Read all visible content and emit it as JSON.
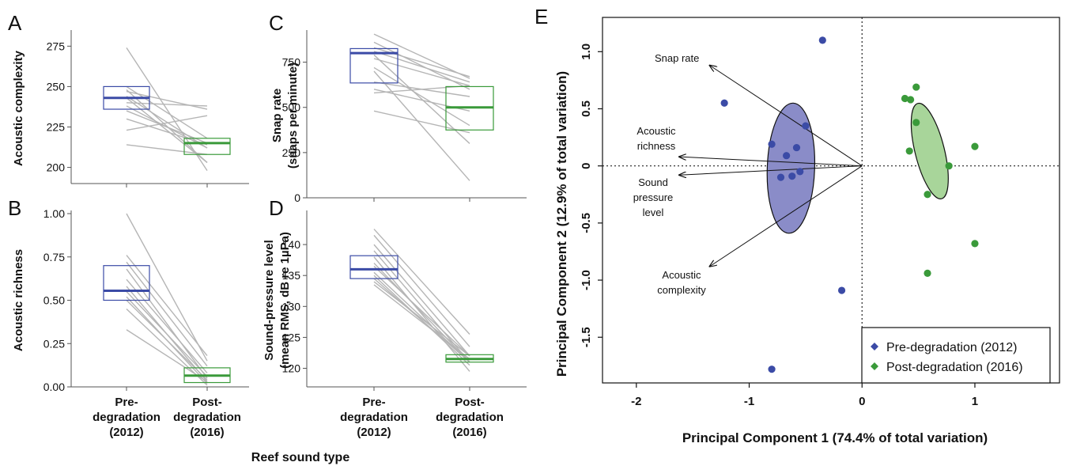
{
  "figure": {
    "x_title": "Reef sound type",
    "categories": [
      "Pre-\ndegradation\n(2012)",
      "Post-\ndegradation\n(2016)"
    ]
  },
  "colors": {
    "pre": "#3B4BA6",
    "post": "#3A9A3A",
    "line": "#b5b5b5",
    "ellipse_pre": "#8A8CC8",
    "ellipse_post": "#A8D59A"
  },
  "chart_data": [
    {
      "panel": "A",
      "type": "box",
      "ylabel": "Acoustic complexity",
      "ylim": [
        190,
        283
      ],
      "yticks": [
        200,
        225,
        250,
        275
      ],
      "boxes": [
        {
          "group": "Pre-degradation (2012)",
          "q1": 236,
          "median": 243,
          "q3": 250
        },
        {
          "group": "Post-degradation (2016)",
          "q1": 208,
          "median": 215,
          "q3": 218
        }
      ],
      "pairs": [
        [
          274,
          198
        ],
        [
          250,
          218
        ],
        [
          248,
          203
        ],
        [
          247,
          236
        ],
        [
          244,
          212
        ],
        [
          243,
          203
        ],
        [
          240,
          238
        ],
        [
          238,
          212
        ],
        [
          235,
          215
        ],
        [
          230,
          214
        ],
        [
          223,
          232
        ],
        [
          214,
          208
        ]
      ]
    },
    {
      "panel": "B",
      "type": "box",
      "ylabel": "Acoustic richness",
      "ylim": [
        0,
        1.0
      ],
      "yticks": [
        0.0,
        0.25,
        0.5,
        0.75,
        1.0
      ],
      "yticklabels": [
        "0.00",
        "0.25",
        "0.50",
        "0.75",
        "1.00"
      ],
      "boxes": [
        {
          "group": "Pre-degradation (2012)",
          "q1": 0.5,
          "median": 0.555,
          "q3": 0.7
        },
        {
          "group": "Post-degradation (2016)",
          "q1": 0.025,
          "median": 0.065,
          "q3": 0.11
        }
      ],
      "pairs": [
        [
          1.0,
          0.15
        ],
        [
          0.76,
          0.18
        ],
        [
          0.72,
          0.12
        ],
        [
          0.68,
          0.05
        ],
        [
          0.62,
          0.08
        ],
        [
          0.58,
          0.03
        ],
        [
          0.55,
          0.06
        ],
        [
          0.52,
          0.02
        ],
        [
          0.5,
          0.04
        ],
        [
          0.45,
          0.01
        ],
        [
          0.33,
          0.03
        ]
      ]
    },
    {
      "panel": "C",
      "type": "box",
      "ylabel": "Snap rate\n(snaps per minute)",
      "ylim": [
        0,
        910
      ],
      "yticks": [
        0,
        250,
        500,
        750
      ],
      "boxes": [
        {
          "group": "Pre-degradation (2012)",
          "q1": 635,
          "median": 800,
          "q3": 825
        },
        {
          "group": "Post-degradation (2016)",
          "q1": 375,
          "median": 500,
          "q3": 615
        }
      ],
      "pairs": [
        [
          905,
          660
        ],
        [
          860,
          600
        ],
        [
          830,
          670
        ],
        [
          810,
          640
        ],
        [
          790,
          300
        ],
        [
          770,
          620
        ],
        [
          720,
          400
        ],
        [
          700,
          95
        ],
        [
          640,
          560
        ],
        [
          600,
          480
        ],
        [
          580,
          620
        ],
        [
          480,
          360
        ]
      ]
    },
    {
      "panel": "D",
      "type": "box",
      "ylabel": "Sound-pressure level\n(mean RMS, dB re 1µPa)",
      "ylim": [
        117,
        145
      ],
      "yticks": [
        120,
        125,
        130,
        135,
        140
      ],
      "boxes": [
        {
          "group": "Pre-degradation (2012)",
          "q1": 134.5,
          "median": 136,
          "q3": 138.2
        },
        {
          "group": "Post-degradation (2016)",
          "q1": 121,
          "median": 121.5,
          "q3": 122.2
        }
      ],
      "pairs": [
        [
          142.5,
          125.5
        ],
        [
          141.5,
          123.5
        ],
        [
          140,
          122
        ],
        [
          139,
          121
        ],
        [
          138,
          119.5
        ],
        [
          137,
          121
        ],
        [
          136.5,
          122
        ],
        [
          135.5,
          121
        ],
        [
          135,
          120.5
        ],
        [
          134.5,
          121
        ],
        [
          134,
          122
        ],
        [
          133.5,
          121.5
        ]
      ]
    },
    {
      "panel": "E",
      "type": "scatter",
      "xlabel": "Principal Component 1 (74.4% of total variation)",
      "ylabel": "Principal Component 2 (12.9% of total variation)",
      "xlim": [
        -2.3,
        1.75
      ],
      "ylim": [
        -1.9,
        1.3
      ],
      "xticks": [
        -2,
        -1,
        0,
        1
      ],
      "yticks": [
        1.0,
        0.5,
        0,
        -0.5,
        -1.0,
        -1.5
      ],
      "yticklabels": [
        "1.0",
        "0.5",
        "0",
        "-0.5",
        "-1.0",
        "-1.5"
      ],
      "series": [
        {
          "name": "Pre-degradation (2012)",
          "color": "#3B4BA6",
          "points": [
            [
              -0.35,
              1.1
            ],
            [
              -1.22,
              0.55
            ],
            [
              -0.5,
              0.35
            ],
            [
              -0.8,
              0.19
            ],
            [
              -0.58,
              0.16
            ],
            [
              -0.67,
              0.09
            ],
            [
              -0.55,
              -0.05
            ],
            [
              -0.62,
              -0.09
            ],
            [
              -0.72,
              -0.1
            ],
            [
              -0.18,
              -1.09
            ],
            [
              -0.8,
              -1.78
            ]
          ],
          "ellipse": {
            "cx": -0.63,
            "cy": -0.02,
            "rx": 0.21,
            "ry": 0.57,
            "angle": 2
          }
        },
        {
          "name": "Post-degradation (2016)",
          "color": "#3A9A3A",
          "points": [
            [
              0.48,
              0.69
            ],
            [
              0.38,
              0.59
            ],
            [
              0.43,
              0.58
            ],
            [
              0.48,
              0.38
            ],
            [
              0.42,
              0.13
            ],
            [
              1.0,
              0.17
            ],
            [
              0.77,
              0.0
            ],
            [
              0.58,
              -0.25
            ],
            [
              1.0,
              -0.68
            ],
            [
              0.58,
              -0.94
            ]
          ],
          "ellipse": {
            "cx": 0.6,
            "cy": 0.13,
            "rx": 0.13,
            "ry": 0.43,
            "angle": -14
          }
        }
      ],
      "vectors": [
        {
          "label": "Snap rate",
          "x": -1.35,
          "y": 0.88
        },
        {
          "label": "Acoustic\nrichness",
          "x": -1.62,
          "y": 0.08
        },
        {
          "label": "Sound\npressure\nlevel",
          "x": -1.62,
          "y": -0.08
        },
        {
          "label": "Acoustic\ncomplexity",
          "x": -1.35,
          "y": -0.88
        }
      ],
      "legend": {
        "position": "bottom-right",
        "entries": [
          "Pre-degradation (2012)",
          "Post-degradation (2016)"
        ]
      }
    }
  ]
}
